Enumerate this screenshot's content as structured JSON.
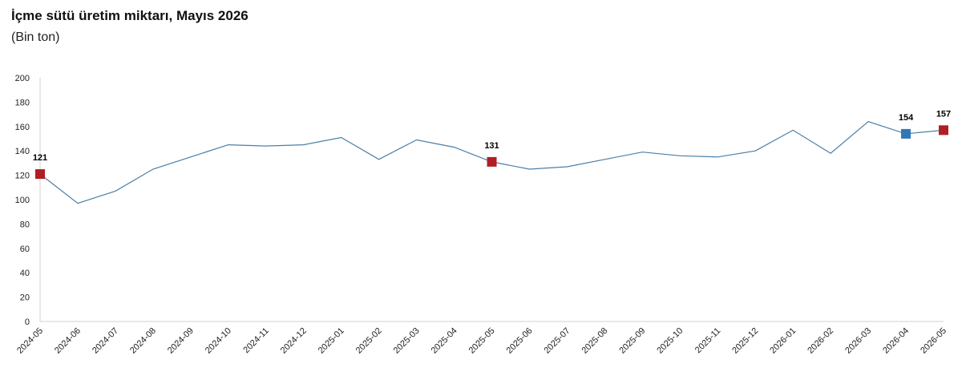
{
  "chart_data": {
    "type": "line",
    "title": "İçme sütü üretim miktarı, Mayıs 2026",
    "subtitle": "(Bin ton)",
    "x": [
      "2024-05",
      "2024-06",
      "2024-07",
      "2024-08",
      "2024-09",
      "2024-10",
      "2024-11",
      "2024-12",
      "2025-01",
      "2025-02",
      "2025-03",
      "2025-04",
      "2025-05",
      "2025-06",
      "2025-07",
      "2025-08",
      "2025-09",
      "2025-10",
      "2025-11",
      "2025-12",
      "2026-01",
      "2026-02",
      "2026-03",
      "2026-04",
      "2026-05"
    ],
    "series": [
      {
        "values": [
          121,
          97,
          107,
          125,
          135,
          145,
          144,
          145,
          151,
          133,
          149,
          143,
          131,
          125,
          127,
          133,
          139,
          136,
          135,
          140,
          157,
          138,
          164,
          154,
          157
        ]
      }
    ],
    "ylim": [
      0,
      200
    ],
    "yticks": [
      0,
      20,
      40,
      60,
      80,
      100,
      120,
      140,
      160,
      180,
      200
    ],
    "grid": false,
    "line_color": "#4a7fa8",
    "highlight_color_red": "#b01e23",
    "highlight_color_blue": "#2f78b8",
    "highlighted_points": [
      {
        "x": "2024-05",
        "value": 121,
        "label": "121",
        "color": "red"
      },
      {
        "x": "2025-05",
        "value": 131,
        "label": "131",
        "color": "red"
      },
      {
        "x": "2026-04",
        "value": 154,
        "label": "154",
        "color": "blue"
      },
      {
        "x": "2026-05",
        "value": 157,
        "label": "157",
        "color": "red"
      }
    ]
  }
}
